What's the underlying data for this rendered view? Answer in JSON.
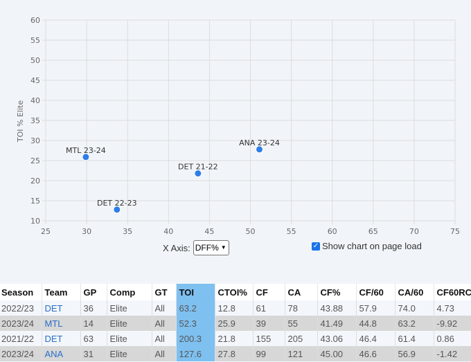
{
  "chart_data": {
    "type": "scatter",
    "title": "",
    "xlabel": "",
    "ylabel": "TOI % Elite",
    "xlim": [
      25,
      75
    ],
    "ylim": [
      10,
      60
    ],
    "xticks": [
      25,
      30,
      35,
      40,
      45,
      50,
      55,
      60,
      65,
      70,
      75
    ],
    "yticks": [
      10,
      15,
      20,
      25,
      30,
      35,
      40,
      45,
      50,
      55,
      60
    ],
    "grid": true,
    "point_color": "#2f7ee6",
    "points": [
      {
        "label": "MTL 23-24",
        "x": 29.9,
        "y": 25.9
      },
      {
        "label": "DET 22-23",
        "x": 33.7,
        "y": 12.8
      },
      {
        "label": "DET 21-22",
        "x": 43.6,
        "y": 21.8
      },
      {
        "label": "ANA 23-24",
        "x": 51.1,
        "y": 27.8
      }
    ]
  },
  "controls": {
    "x_axis_label": "X Axis:",
    "x_axis_selected": "DFF%",
    "show_chart_label": "Show chart on page load",
    "show_chart_checked": true
  },
  "table": {
    "headers": [
      "Season",
      "Team",
      "GP",
      "Comp",
      "GT",
      "TOI",
      "CTOI%",
      "CF",
      "CA",
      "CF%",
      "CF/60",
      "CA/60",
      "CF60RC"
    ],
    "rows": [
      [
        "2022/23",
        "DET",
        "36",
        "Elite",
        "All",
        "63.2",
        "12.8",
        "61",
        "78",
        "43.88",
        "57.9",
        "74.0",
        "4.73"
      ],
      [
        "2023/24",
        "MTL",
        "14",
        "Elite",
        "All",
        "52.3",
        "25.9",
        "39",
        "55",
        "41.49",
        "44.8",
        "63.2",
        "-9.92"
      ],
      [
        "2021/22",
        "DET",
        "63",
        "Elite",
        "All",
        "200.3",
        "21.8",
        "155",
        "205",
        "43.06",
        "46.4",
        "61.4",
        "0.86"
      ],
      [
        "2023/24",
        "ANA",
        "31",
        "Elite",
        "All",
        "127.6",
        "27.8",
        "99",
        "121",
        "45.00",
        "46.6",
        "56.9",
        "-1.42"
      ]
    ]
  },
  "colors": {
    "highlight": "#7ec0f0",
    "link": "#2a6ec6"
  }
}
